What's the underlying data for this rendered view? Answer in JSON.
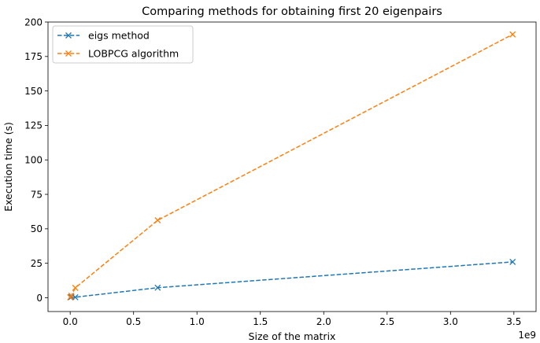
{
  "chart_data": {
    "type": "line",
    "title": "Comparing methods for obtaining first 20 eigenpairs",
    "xlabel": "Size of the matrix",
    "ylabel": "Execution time (s)",
    "x_offset_label": "1e9",
    "xlim": [
      -175000000.0,
      3675000000.0
    ],
    "ylim": [
      -10,
      200
    ],
    "xticks": [
      0,
      500000000.0,
      1000000000.0,
      1500000000.0,
      2000000000.0,
      2500000000.0,
      3000000000.0,
      3500000000.0
    ],
    "xtick_labels": [
      "0.0",
      "0.5",
      "1.0",
      "1.5",
      "2.0",
      "2.5",
      "3.0",
      "3.5"
    ],
    "yticks": [
      0,
      25,
      50,
      75,
      100,
      125,
      150,
      175,
      200
    ],
    "ytick_labels": [
      "0",
      "25",
      "50",
      "75",
      "100",
      "125",
      "150",
      "175",
      "200"
    ],
    "grid": false,
    "legend_position": "top-left",
    "series": [
      {
        "name": "eigs method",
        "color": "#1f77b4",
        "linestyle": "dashed",
        "marker": "x",
        "x": [
          1000000,
          9000000,
          40000000,
          690000000,
          3490000000
        ],
        "y": [
          0.3,
          0.5,
          0.4,
          7.3,
          26
        ]
      },
      {
        "name": "LOBPCG algorithm",
        "color": "#ff7f0e",
        "linestyle": "dashed",
        "marker": "x",
        "x": [
          1000000,
          9000000,
          40000000,
          690000000,
          3490000000
        ],
        "y": [
          0.5,
          1.5,
          7.2,
          56.2,
          191
        ]
      }
    ]
  }
}
